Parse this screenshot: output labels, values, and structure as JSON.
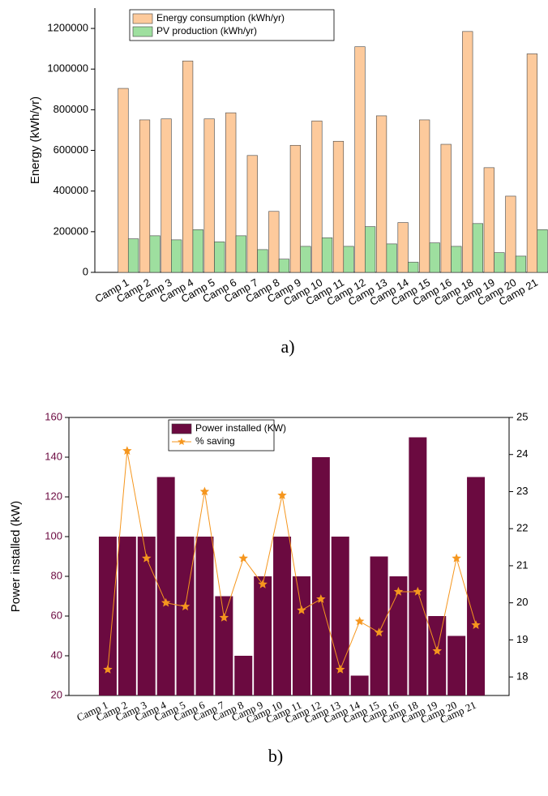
{
  "chart_data": [
    {
      "type": "bar",
      "caption": "a)",
      "y_label": "Energy (kWh/yr)",
      "categories": [
        "Camp 1",
        "Camp 2",
        "Camp 3",
        "Camp 4",
        "Camp 5",
        "Camp 6",
        "Camp 7",
        "Camp 8",
        "Camp 9",
        "Camp 10",
        "Camp 11",
        "Camp 12",
        "Camp 13",
        "Camp 14",
        "Camp 15",
        "Camp 16",
        "Camp 18",
        "Camp 19",
        "Camp 20",
        "Camp 21"
      ],
      "series": [
        {
          "name": "Energy consumption (kWh/yr)",
          "color": "#fdca9c",
          "values": [
            905000,
            750000,
            755000,
            1040000,
            755000,
            785000,
            575000,
            300000,
            625000,
            745000,
            645000,
            1110000,
            770000,
            245000,
            750000,
            630000,
            1185000,
            515000,
            375000,
            1075000
          ]
        },
        {
          "name": "PV production (kWh/yr)",
          "color": "#9edf9f",
          "values": [
            165000,
            180000,
            160000,
            210000,
            150000,
            180000,
            112000,
            65000,
            128000,
            170000,
            128000,
            225000,
            140000,
            50000,
            145000,
            128000,
            240000,
            97000,
            80000,
            210000
          ]
        }
      ],
      "ylim": [
        0,
        1300000
      ],
      "yticks": [
        0,
        200000,
        400000,
        600000,
        800000,
        1000000,
        1200000
      ],
      "legend": "upper left"
    },
    {
      "type": "bar",
      "caption": "b)",
      "y_label": "Power installed (kW)",
      "categories": [
        "Camp 1",
        "Camp 2",
        "Camp 3",
        "Camp 4",
        "Camp 5",
        "Camp 6",
        "Camp 7",
        "Camp 8",
        "Camp 9",
        "Camp 10",
        "Camp 11",
        "Camp 12",
        "Camp 13",
        "Camp 14",
        "Camp 15",
        "Camp 16",
        "Camp 18",
        "Camp 19",
        "Camp 20",
        "Camp 21"
      ],
      "series": [
        {
          "name": "Power installed (KW)",
          "type": "bar",
          "color": "#6b0a40",
          "values": [
            100,
            100,
            100,
            130,
            100,
            100,
            70,
            40,
            80,
            100,
            80,
            140,
            100,
            30,
            90,
            80,
            150,
            60,
            50,
            130
          ]
        },
        {
          "name": "% saving",
          "type": "line",
          "axis": "y2",
          "color": "#f5961e",
          "values": [
            18.2,
            24.1,
            21.2,
            20.0,
            19.9,
            23.0,
            19.6,
            21.2,
            20.5,
            22.9,
            19.8,
            20.1,
            18.2,
            19.5,
            19.2,
            20.3,
            20.3,
            18.7,
            21.2,
            19.4
          ]
        }
      ],
      "ylim": [
        20,
        160
      ],
      "yticks": [
        20,
        40,
        60,
        80,
        100,
        120,
        140,
        160
      ],
      "ytick_color": "#6b0a40",
      "y2lim": [
        17.5,
        25
      ],
      "y2ticks": [
        18,
        19,
        20,
        21,
        22,
        23,
        24,
        25
      ],
      "legend": "upper left"
    }
  ]
}
